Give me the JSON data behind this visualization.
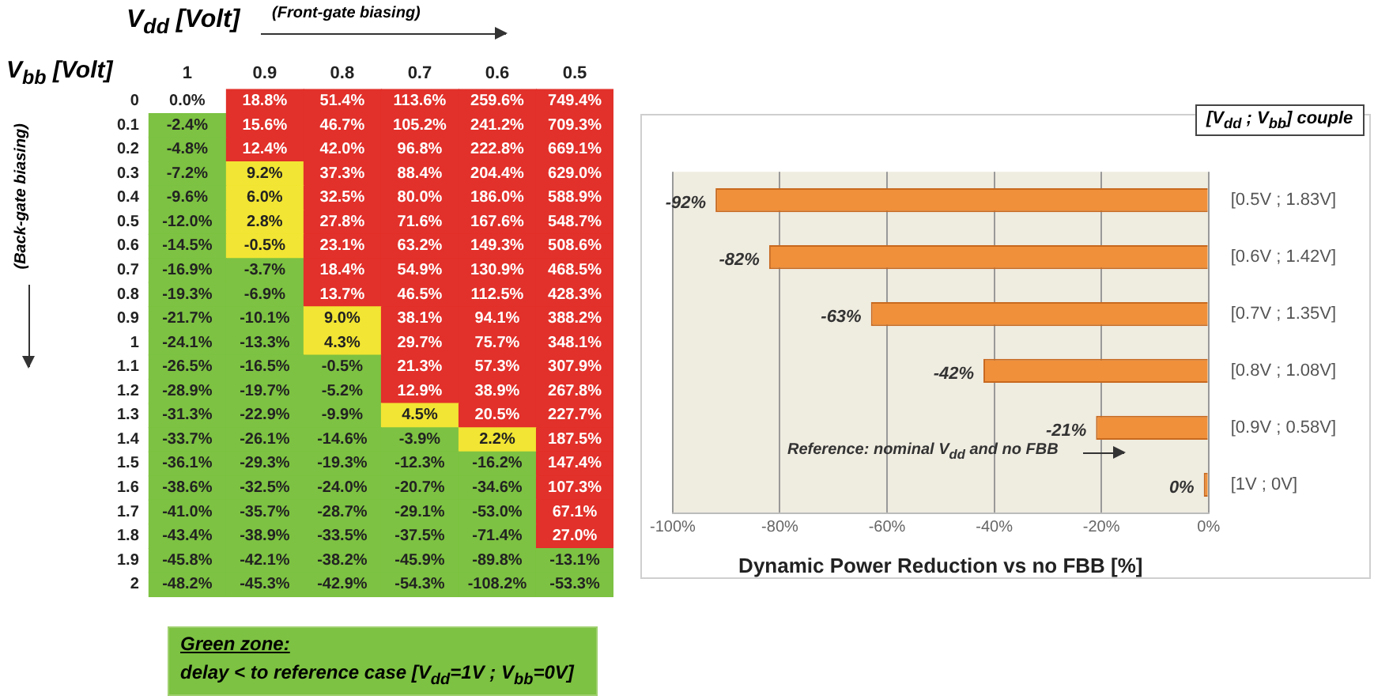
{
  "chart_data": [
    {
      "type": "heatmap",
      "xlabel": "V$_{dd}$ [Volt]",
      "ylabel": "V$_{bb}$ [Volt]",
      "annotations": [
        "(Front-gate biasing)",
        "(Back-gate biasing)",
        "Green zone:",
        "delay < to reference case [V$_{dd}$=1V ; V$_{bb}$=0V]"
      ],
      "categories": [
        "1",
        "0.9",
        "0.8",
        "0.7",
        "0.6",
        "0.5"
      ],
      "y_categories": [
        "0",
        "0.1",
        "0.2",
        "0.3",
        "0.4",
        "0.5",
        "0.6",
        "0.7",
        "0.8",
        "0.9",
        "1",
        "1.1",
        "1.2",
        "1.3",
        "1.4",
        "1.5",
        "1.6",
        "1.7",
        "1.8",
        "1.9",
        "2"
      ],
      "cells": [
        [
          0,
          18.8,
          51.4,
          113.6,
          259.6,
          749.4
        ],
        [
          -2.4,
          15.6,
          46.7,
          105.2,
          241.2,
          709.3
        ],
        [
          -4.8,
          12.4,
          42.0,
          96.8,
          222.8,
          669.1
        ],
        [
          -7.2,
          9.2,
          37.3,
          88.4,
          204.4,
          629.0
        ],
        [
          -9.6,
          6.0,
          32.5,
          80.0,
          186.0,
          588.9
        ],
        [
          -12.0,
          2.8,
          27.8,
          71.6,
          167.6,
          548.7
        ],
        [
          -14.5,
          -0.5,
          23.1,
          63.2,
          149.3,
          508.6
        ],
        [
          -16.9,
          -3.7,
          18.4,
          54.9,
          130.9,
          468.5
        ],
        [
          -19.3,
          -6.9,
          13.7,
          46.5,
          112.5,
          428.3
        ],
        [
          -21.7,
          -10.1,
          9.0,
          38.1,
          94.1,
          388.2
        ],
        [
          -24.1,
          -13.3,
          4.3,
          29.7,
          75.7,
          348.1
        ],
        [
          -26.5,
          -16.5,
          -0.5,
          21.3,
          57.3,
          307.9
        ],
        [
          -28.9,
          -19.7,
          -5.2,
          12.9,
          38.9,
          267.8
        ],
        [
          -31.3,
          -22.9,
          -9.9,
          4.5,
          20.5,
          227.7
        ],
        [
          -33.7,
          -26.1,
          -14.6,
          -3.9,
          2.2,
          187.5
        ],
        [
          -36.1,
          -29.3,
          -19.3,
          -12.3,
          -16.2,
          147.4
        ],
        [
          -38.6,
          -32.5,
          -24.0,
          -20.7,
          -34.6,
          107.3
        ],
        [
          -41.0,
          -35.7,
          -28.7,
          -29.1,
          -53.0,
          67.1
        ],
        [
          -43.4,
          -38.9,
          -33.5,
          -37.5,
          -71.4,
          27.0
        ],
        [
          -45.8,
          -42.1,
          -38.2,
          -45.9,
          -89.8,
          -13.1
        ],
        [
          -48.2,
          -45.3,
          -42.9,
          -54.3,
          -108.2,
          -53.3
        ]
      ],
      "cell_labels": [
        [
          "0.0%",
          "18.8%",
          "51.4%",
          "113.6%",
          "259.6%",
          "749.4%"
        ],
        [
          "-2.4%",
          "15.6%",
          "46.7%",
          "105.2%",
          "241.2%",
          "709.3%"
        ],
        [
          "-4.8%",
          "12.4%",
          "42.0%",
          "96.8%",
          "222.8%",
          "669.1%"
        ],
        [
          "-7.2%",
          "9.2%",
          "37.3%",
          "88.4%",
          "204.4%",
          "629.0%"
        ],
        [
          "-9.6%",
          "6.0%",
          "32.5%",
          "80.0%",
          "186.0%",
          "588.9%"
        ],
        [
          "-12.0%",
          "2.8%",
          "27.8%",
          "71.6%",
          "167.6%",
          "548.7%"
        ],
        [
          "-14.5%",
          "-0.5%",
          "23.1%",
          "63.2%",
          "149.3%",
          "508.6%"
        ],
        [
          "-16.9%",
          "-3.7%",
          "18.4%",
          "54.9%",
          "130.9%",
          "468.5%"
        ],
        [
          "-19.3%",
          "-6.9%",
          "13.7%",
          "46.5%",
          "112.5%",
          "428.3%"
        ],
        [
          "-21.7%",
          "-10.1%",
          "9.0%",
          "38.1%",
          "94.1%",
          "388.2%"
        ],
        [
          "-24.1%",
          "-13.3%",
          "4.3%",
          "29.7%",
          "75.7%",
          "348.1%"
        ],
        [
          "-26.5%",
          "-16.5%",
          "-0.5%",
          "21.3%",
          "57.3%",
          "307.9%"
        ],
        [
          "-28.9%",
          "-19.7%",
          "-5.2%",
          "12.9%",
          "38.9%",
          "267.8%"
        ],
        [
          "-31.3%",
          "-22.9%",
          "-9.9%",
          "4.5%",
          "20.5%",
          "227.7%"
        ],
        [
          "-33.7%",
          "-26.1%",
          "-14.6%",
          "-3.9%",
          "2.2%",
          "187.5%"
        ],
        [
          "-36.1%",
          "-29.3%",
          "-19.3%",
          "-12.3%",
          "-16.2%",
          "147.4%"
        ],
        [
          "-38.6%",
          "-32.5%",
          "-24.0%",
          "-20.7%",
          "-34.6%",
          "107.3%"
        ],
        [
          "-41.0%",
          "-35.7%",
          "-28.7%",
          "-29.1%",
          "-53.0%",
          "67.1%"
        ],
        [
          "-43.4%",
          "-38.9%",
          "-33.5%",
          "-37.5%",
          "-71.4%",
          "27.0%"
        ],
        [
          "-45.8%",
          "-42.1%",
          "-38.2%",
          "-45.9%",
          "-89.8%",
          "-13.1%"
        ],
        [
          "-48.2%",
          "-45.3%",
          "-42.9%",
          "-54.3%",
          "-108.2%",
          "-53.3%"
        ]
      ],
      "colors": [
        [
          "#ffffff",
          "#e2302a",
          "#e2302a",
          "#e2302a",
          "#e2302a",
          "#e2302a"
        ],
        [
          "#7dc242",
          "#e2302a",
          "#e2302a",
          "#e2302a",
          "#e2302a",
          "#e2302a"
        ],
        [
          "#7dc242",
          "#e2302a",
          "#e2302a",
          "#e2302a",
          "#e2302a",
          "#e2302a"
        ],
        [
          "#7dc242",
          "#f2e533",
          "#e2302a",
          "#e2302a",
          "#e2302a",
          "#e2302a"
        ],
        [
          "#7dc242",
          "#f2e533",
          "#e2302a",
          "#e2302a",
          "#e2302a",
          "#e2302a"
        ],
        [
          "#7dc242",
          "#f2e533",
          "#e2302a",
          "#e2302a",
          "#e2302a",
          "#e2302a"
        ],
        [
          "#7dc242",
          "#f2e533",
          "#e2302a",
          "#e2302a",
          "#e2302a",
          "#e2302a"
        ],
        [
          "#7dc242",
          "#7dc242",
          "#e2302a",
          "#e2302a",
          "#e2302a",
          "#e2302a"
        ],
        [
          "#7dc242",
          "#7dc242",
          "#e2302a",
          "#e2302a",
          "#e2302a",
          "#e2302a"
        ],
        [
          "#7dc242",
          "#7dc242",
          "#f2e533",
          "#e2302a",
          "#e2302a",
          "#e2302a"
        ],
        [
          "#7dc242",
          "#7dc242",
          "#f2e533",
          "#e2302a",
          "#e2302a",
          "#e2302a"
        ],
        [
          "#7dc242",
          "#7dc242",
          "#7dc242",
          "#e2302a",
          "#e2302a",
          "#e2302a"
        ],
        [
          "#7dc242",
          "#7dc242",
          "#7dc242",
          "#e2302a",
          "#e2302a",
          "#e2302a"
        ],
        [
          "#7dc242",
          "#7dc242",
          "#7dc242",
          "#f2e533",
          "#e2302a",
          "#e2302a"
        ],
        [
          "#7dc242",
          "#7dc242",
          "#7dc242",
          "#7dc242",
          "#f2e533",
          "#e2302a"
        ],
        [
          "#7dc242",
          "#7dc242",
          "#7dc242",
          "#7dc242",
          "#7dc242",
          "#e2302a"
        ],
        [
          "#7dc242",
          "#7dc242",
          "#7dc242",
          "#7dc242",
          "#7dc242",
          "#e2302a"
        ],
        [
          "#7dc242",
          "#7dc242",
          "#7dc242",
          "#7dc242",
          "#7dc242",
          "#e2302a"
        ],
        [
          "#7dc242",
          "#7dc242",
          "#7dc242",
          "#7dc242",
          "#7dc242",
          "#e2302a"
        ],
        [
          "#7dc242",
          "#7dc242",
          "#7dc242",
          "#7dc242",
          "#7dc242",
          "#7dc242"
        ],
        [
          "#7dc242",
          "#7dc242",
          "#7dc242",
          "#7dc242",
          "#7dc242",
          "#7dc242"
        ]
      ]
    },
    {
      "type": "bar",
      "orientation": "horizontal",
      "xlabel": "Dynamic Power Reduction vs no FBB [%]",
      "legend_title": "[V$_{dd}$ ; V$_{bb}$] couple",
      "annotations": [
        "Reference: nominal V$_{dd}$ and no FBB"
      ],
      "categories": [
        "[0.5V ; 1.83V]",
        "[0.6V ; 1.42V]",
        "[0.7V ; 1.35V]",
        "[0.8V ; 1.08V]",
        "[0.9V ; 0.58V]",
        "[1V ; 0V]"
      ],
      "values": [
        -92,
        -82,
        -63,
        -42,
        -21,
        0
      ],
      "value_labels": [
        "-92%",
        "-82%",
        "-63%",
        "-42%",
        "-21%",
        "0%"
      ],
      "color": "#f0903a",
      "xlim": [
        -100,
        0
      ],
      "xticks": [
        {
          "value": -100,
          "label": "-100%"
        },
        {
          "value": -80,
          "label": "-80%"
        },
        {
          "value": -60,
          "label": "-60%"
        },
        {
          "value": -40,
          "label": "-40%"
        },
        {
          "value": -20,
          "label": "-20%"
        },
        {
          "value": 0,
          "label": "0%"
        }
      ],
      "grid": "x"
    }
  ]
}
